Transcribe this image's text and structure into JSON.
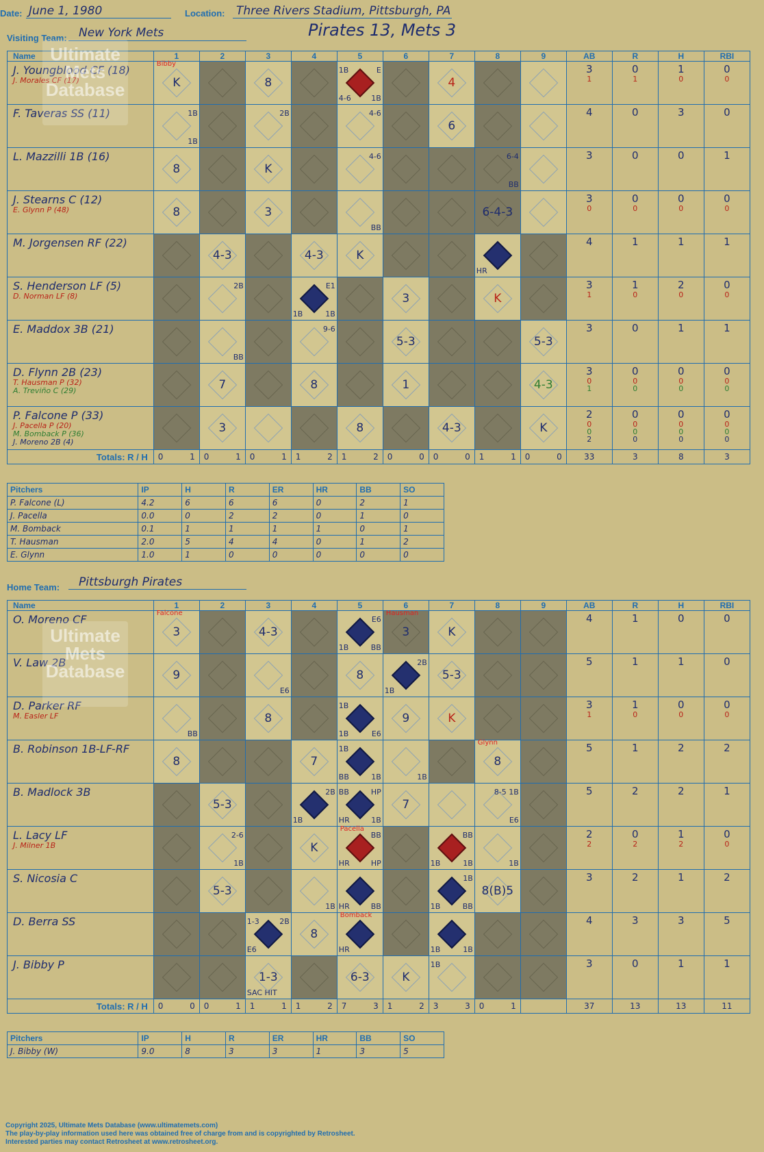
{
  "header": {
    "date_label": "Date:",
    "date": "June 1, 1980",
    "location_label": "Location:",
    "location": "Three Rivers Stadium, Pittsburgh, PA",
    "visiting_label": "Visiting Team:",
    "visiting_team": "New York Mets",
    "home_label": "Home Team:",
    "home_team": "Pittsburgh Pirates",
    "score_title": "Pirates 13, Mets 3"
  },
  "columns": {
    "name": "Name",
    "innings": [
      "1",
      "2",
      "3",
      "4",
      "5",
      "6",
      "7",
      "8",
      "9"
    ],
    "stats": [
      "AB",
      "R",
      "H",
      "RBI"
    ]
  },
  "watermark": "Ultimate Mets Database",
  "watermark_url": "ultimatemets.com",
  "visitors": {
    "rows": [
      {
        "name": "J. Youngblood CF (18)",
        "subs": [
          {
            "text": "J. Morales CF (17)",
            "color": "red"
          }
        ],
        "cells": [
          {
            "res": "K",
            "pnote": "Bibby"
          },
          {},
          {
            "res": "8"
          },
          {},
          {
            "scored": "red",
            "tl": "1B",
            "tr": "E",
            "bl": "4-6",
            "br": "1B"
          },
          {},
          {
            "res": "4",
            "rc": "red"
          },
          {},
          {}
        ],
        "stats": [
          [
            "3",
            "1"
          ],
          [
            "0",
            "1"
          ],
          [
            "1",
            "0"
          ],
          [
            "0",
            "0"
          ]
        ]
      },
      {
        "name": "F. Taveras SS (11)",
        "subs": [],
        "cells": [
          {
            "tr": "1B",
            "br": "1B"
          },
          {},
          {
            "tr": "2B"
          },
          {},
          {
            "tr": "4-6"
          },
          {},
          {
            "res": "6"
          },
          {},
          {}
        ],
        "stats": [
          [
            "4"
          ],
          [
            "0"
          ],
          [
            "3"
          ],
          [
            "0"
          ]
        ]
      },
      {
        "name": "L. Mazzilli 1B (16)",
        "subs": [],
        "cells": [
          {
            "res": "8"
          },
          {},
          {
            "res": "K"
          },
          {},
          {
            "tr": "4-6"
          },
          {},
          {},
          {
            "tr": "6-4",
            "br": "BB"
          },
          {}
        ],
        "stats": [
          [
            "3"
          ],
          [
            "0"
          ],
          [
            "0"
          ],
          [
            "1"
          ]
        ]
      },
      {
        "name": "J. Stearns C (12)",
        "subs": [
          {
            "text": "E. Glynn P (48)",
            "color": "red"
          }
        ],
        "cells": [
          {
            "res": "8"
          },
          {},
          {
            "res": "3"
          },
          {},
          {
            "br": "BB"
          },
          {},
          {},
          {
            "res": "6-4-3"
          },
          {}
        ],
        "stats": [
          [
            "3",
            "0"
          ],
          [
            "0",
            "0"
          ],
          [
            "0",
            "0"
          ],
          [
            "0",
            "0"
          ]
        ]
      },
      {
        "name": "M. Jorgensen RF (22)",
        "subs": [],
        "cells": [
          {},
          {
            "res": "4-3"
          },
          {},
          {
            "res": "4-3"
          },
          {
            "res": "K"
          },
          {},
          {},
          {
            "scored": "blue",
            "bl": "HR"
          },
          {}
        ],
        "stats": [
          [
            "4"
          ],
          [
            "1"
          ],
          [
            "1"
          ],
          [
            "1"
          ]
        ]
      },
      {
        "name": "S. Henderson LF (5)",
        "subs": [
          {
            "text": "D. Norman LF (8)",
            "color": "red"
          }
        ],
        "cells": [
          {},
          {
            "tr": "2B"
          },
          {},
          {
            "scored": "blue",
            "tr": "E1",
            "bl": "1B",
            "br": "1B"
          },
          {},
          {
            "res": "3"
          },
          {},
          {
            "res": "K",
            "rc": "red"
          },
          {}
        ],
        "stats": [
          [
            "3",
            "1"
          ],
          [
            "1",
            "0"
          ],
          [
            "2",
            "0"
          ],
          [
            "0",
            "0"
          ]
        ]
      },
      {
        "name": "E. Maddox 3B (21)",
        "subs": [],
        "cells": [
          {},
          {
            "br": "BB"
          },
          {},
          {
            "tr": "9-6"
          },
          {},
          {
            "res": "5-3"
          },
          {},
          {},
          {
            "res": "5-3"
          }
        ],
        "stats": [
          [
            "3"
          ],
          [
            "0"
          ],
          [
            "1"
          ],
          [
            "1"
          ]
        ]
      },
      {
        "name": "D. Flynn 2B (23)",
        "subs": [
          {
            "text": "T. Hausman P (32)",
            "color": "red"
          },
          {
            "text": "A. Treviño C (29)",
            "color": "green"
          }
        ],
        "cells": [
          {},
          {
            "res": "7"
          },
          {},
          {
            "res": "8"
          },
          {},
          {
            "res": "1"
          },
          {},
          {},
          {
            "res": "4-3",
            "rc": "green"
          }
        ],
        "stats": [
          [
            "3",
            "0",
            "1"
          ],
          [
            "0",
            "0",
            "0"
          ],
          [
            "0",
            "0",
            "0"
          ],
          [
            "0",
            "0",
            "0"
          ]
        ]
      },
      {
        "name": "P. Falcone P (33)",
        "subs": [
          {
            "text": "J. Pacella P (20)",
            "color": "red"
          },
          {
            "text": "M. Bomback P (36)",
            "color": "green"
          },
          {
            "text": "J. Moreno 2B (4)",
            "color": "blue"
          }
        ],
        "cells": [
          {},
          {
            "res": "3"
          },
          {},
          {},
          {
            "res": "8"
          },
          {},
          {
            "res": "4-3"
          },
          {},
          {
            "res": "K"
          }
        ],
        "stats": [
          [
            "2",
            "0",
            "0",
            "2"
          ],
          [
            "0",
            "0",
            "0",
            "0"
          ],
          [
            "0",
            "0",
            "0",
            "0"
          ],
          [
            "0",
            "0",
            "0",
            "0"
          ]
        ]
      }
    ],
    "totals_label": "Totals:",
    "rh": [
      "R",
      "H"
    ],
    "totals": [
      [
        "0",
        "1"
      ],
      [
        "0",
        "1"
      ],
      [
        "0",
        "1"
      ],
      [
        "1",
        "2"
      ],
      [
        "1",
        "2"
      ],
      [
        "0",
        "0"
      ],
      [
        "0",
        "0"
      ],
      [
        "1",
        "1"
      ],
      [
        "0",
        "0"
      ]
    ],
    "stat_totals": [
      "33",
      "3",
      "8",
      "3"
    ],
    "pitchers": {
      "headers": [
        "Pitchers",
        "IP",
        "H",
        "R",
        "ER",
        "HR",
        "BB",
        "SO"
      ],
      "rows": [
        [
          "P. Falcone (L)",
          "4.2",
          "6",
          "6",
          "6",
          "0",
          "2",
          "1"
        ],
        [
          "J. Pacella",
          "0.0",
          "0",
          "2",
          "2",
          "0",
          "1",
          "0"
        ],
        [
          "M. Bomback",
          "0.1",
          "1",
          "1",
          "1",
          "1",
          "0",
          "1"
        ],
        [
          "T. Hausman",
          "2.0",
          "5",
          "4",
          "4",
          "0",
          "1",
          "2"
        ],
        [
          "E. Glynn",
          "1.0",
          "1",
          "0",
          "0",
          "0",
          "0",
          "0"
        ]
      ]
    }
  },
  "home": {
    "rows": [
      {
        "name": "O. Moreno CF",
        "subs": [],
        "cells": [
          {
            "res": "3",
            "pnote": "Falcone"
          },
          {},
          {
            "res": "4-3"
          },
          {},
          {
            "scored": "blue",
            "tr": "E6",
            "bl": "1B",
            "br": "BB"
          },
          {
            "res": "3",
            "pnote": "Hausman"
          },
          {
            "res": "K"
          },
          {},
          {}
        ],
        "stats": [
          [
            "4"
          ],
          [
            "1"
          ],
          [
            "0"
          ],
          [
            "0"
          ]
        ]
      },
      {
        "name": "V. Law 2B",
        "subs": [],
        "cells": [
          {
            "res": "9"
          },
          {},
          {
            "br": "E6"
          },
          {},
          {
            "res": "8"
          },
          {
            "scored": "blue",
            "tr": "2B",
            "bl": "1B"
          },
          {
            "res": "5-3"
          },
          {},
          {}
        ],
        "stats": [
          [
            "5"
          ],
          [
            "1"
          ],
          [
            "1"
          ],
          [
            "0"
          ]
        ]
      },
      {
        "name": "D. Parker RF",
        "subs": [
          {
            "text": "M. Easler LF",
            "color": "red"
          }
        ],
        "cells": [
          {
            "br": "BB"
          },
          {},
          {
            "res": "8"
          },
          {},
          {
            "scored": "blue",
            "tl": "1B",
            "bl": "1B",
            "br": "E6"
          },
          {
            "res": "9"
          },
          {
            "res": "K",
            "rc": "red"
          },
          {},
          {}
        ],
        "stats": [
          [
            "3",
            "1"
          ],
          [
            "1",
            "0"
          ],
          [
            "0",
            "0"
          ],
          [
            "0",
            "0"
          ]
        ]
      },
      {
        "name": "B. Robinson 1B-LF-RF",
        "subs": [],
        "cells": [
          {
            "res": "8"
          },
          {},
          {},
          {
            "res": "7"
          },
          {
            "scored": "blue",
            "tl": "1B",
            "bl": "BB",
            "br": "1B"
          },
          {
            "br": "1B"
          },
          {},
          {
            "res": "8",
            "pnote": "Glynn"
          },
          {}
        ],
        "stats": [
          [
            "5"
          ],
          [
            "1"
          ],
          [
            "2"
          ],
          [
            "2"
          ]
        ]
      },
      {
        "name": "B. Madlock 3B",
        "subs": [],
        "cells": [
          {},
          {
            "res": "5-3"
          },
          {},
          {
            "scored": "blue",
            "tr": "2B",
            "bl": "1B"
          },
          {
            "scored": "blue",
            "tl": "BB",
            "tr": "HP",
            "bl": "HR",
            "br": "1B"
          },
          {
            "res": "7"
          },
          {},
          {
            "tr": "8-5 1B",
            "br": "E6"
          },
          {}
        ],
        "stats": [
          [
            "5"
          ],
          [
            "2"
          ],
          [
            "2"
          ],
          [
            "1"
          ]
        ]
      },
      {
        "name": "L. Lacy LF",
        "subs": [
          {
            "text": "J. Milner 1B",
            "color": "red"
          }
        ],
        "cells": [
          {},
          {
            "tr": "2-6",
            "br": "1B"
          },
          {},
          {
            "res": "K"
          },
          {
            "scored": "red",
            "tr": "BB",
            "bl": "HR",
            "br": "HP",
            "pnote": "Pacella"
          },
          {},
          {
            "scored": "red",
            "tr": "BB",
            "bl": "1B",
            "br": "1B"
          },
          {
            "br": "1B"
          },
          {}
        ],
        "stats": [
          [
            "2",
            "2"
          ],
          [
            "0",
            "2"
          ],
          [
            "1",
            "2"
          ],
          [
            "0",
            "0"
          ]
        ]
      },
      {
        "name": "S. Nicosia C",
        "subs": [],
        "cells": [
          {},
          {
            "res": "5-3"
          },
          {},
          {
            "br": "1B"
          },
          {
            "scored": "blue",
            "bl": "HR",
            "br": "BB"
          },
          {},
          {
            "scored": "blue",
            "tr": "1B",
            "bl": "1B",
            "br": "BB"
          },
          {
            "res": "8(B)5"
          },
          {}
        ],
        "stats": [
          [
            "3"
          ],
          [
            "2"
          ],
          [
            "1"
          ],
          [
            "2"
          ]
        ]
      },
      {
        "name": "D. Berra SS",
        "subs": [],
        "cells": [
          {},
          {},
          {
            "scored": "blue",
            "tl": "1-3",
            "tr": "2B",
            "bl": "E6"
          },
          {
            "res": "8"
          },
          {
            "scored": "blue",
            "bl": "HR",
            "pnote": "Bomback"
          },
          {},
          {
            "scored": "blue",
            "bl": "1B",
            "br": "1B"
          },
          {},
          {}
        ],
        "stats": [
          [
            "4"
          ],
          [
            "3"
          ],
          [
            "3"
          ],
          [
            "5"
          ]
        ]
      },
      {
        "name": "J. Bibby P",
        "subs": [],
        "cells": [
          {},
          {},
          {
            "res": "1-3",
            "bl": "SAC HIT"
          },
          {},
          {
            "res": "6-3"
          },
          {
            "res": "K"
          },
          {
            "tl": "1B"
          },
          {},
          {}
        ],
        "stats": [
          [
            "3"
          ],
          [
            "0"
          ],
          [
            "1"
          ],
          [
            "1"
          ]
        ]
      }
    ],
    "totals_label": "Totals:",
    "rh": [
      "R",
      "H"
    ],
    "totals": [
      [
        "0",
        "0"
      ],
      [
        "0",
        "1"
      ],
      [
        "1",
        "1"
      ],
      [
        "1",
        "2"
      ],
      [
        "7",
        "3"
      ],
      [
        "1",
        "2"
      ],
      [
        "3",
        "3"
      ],
      [
        "0",
        "1"
      ],
      [
        "",
        ""
      ]
    ],
    "stat_totals": [
      "37",
      "13",
      "13",
      "11"
    ],
    "pitchers": {
      "headers": [
        "Pitchers",
        "IP",
        "H",
        "R",
        "ER",
        "HR",
        "BB",
        "SO"
      ],
      "rows": [
        [
          "J. Bibby (W)",
          "9.0",
          "8",
          "3",
          "3",
          "1",
          "3",
          "5"
        ]
      ]
    }
  },
  "dark_visitors": [
    [
      2,
      4,
      6,
      8
    ],
    [
      2,
      4,
      6,
      8
    ],
    [
      2,
      4,
      6,
      7,
      8
    ],
    [
      2,
      4,
      6,
      7,
      8
    ],
    [
      1,
      3,
      6,
      7,
      9
    ],
    [
      1,
      3,
      5,
      7,
      9
    ],
    [
      1,
      3,
      5,
      7,
      8
    ],
    [
      1,
      3,
      5,
      7,
      8
    ],
    [
      1,
      4,
      6,
      8
    ]
  ],
  "dark_home": [
    [
      2,
      4,
      6,
      8,
      9
    ],
    [
      2,
      4,
      8,
      9
    ],
    [
      2,
      4,
      8,
      9
    ],
    [
      2,
      3,
      7,
      9
    ],
    [
      1,
      3,
      9
    ],
    [
      1,
      3,
      6,
      9
    ],
    [
      1,
      3,
      6,
      9
    ],
    [
      1,
      2,
      6,
      8,
      9
    ],
    [
      1,
      2,
      4,
      8,
      9
    ]
  ],
  "footer": [
    "Copyright 2025, Ultimate Mets Database (www.ultimatemets.com)",
    "The play-by-play information used here was obtained free of charge from and is copyrighted by Retrosheet.",
    "Interested parties may contact Retrosheet at www.retrosheet.org."
  ]
}
